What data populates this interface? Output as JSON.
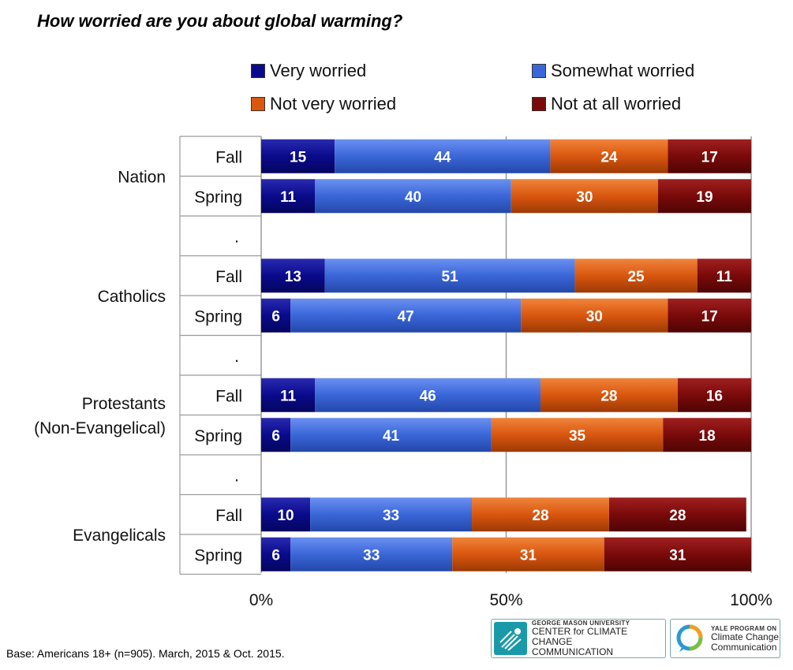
{
  "chart_data": {
    "type": "bar",
    "stacked": true,
    "orientation": "horizontal",
    "title": "How worried are you about global warming?",
    "groups": [
      {
        "label": "Nation",
        "rows": [
          {
            "label": "Fall",
            "values": [
              15,
              44,
              24,
              17
            ]
          },
          {
            "label": "Spring",
            "values": [
              11,
              40,
              30,
              19
            ]
          }
        ]
      },
      {
        "label": "Catholics",
        "rows": [
          {
            "label": "Fall",
            "values": [
              13,
              51,
              25,
              11
            ]
          },
          {
            "label": "Spring",
            "values": [
              6,
              47,
              30,
              17
            ]
          }
        ]
      },
      {
        "label": "Protestants\n(Non-Evangelical)",
        "rows": [
          {
            "label": "Fall",
            "values": [
              11,
              46,
              28,
              16
            ]
          },
          {
            "label": "Spring",
            "values": [
              6,
              41,
              35,
              18
            ]
          }
        ]
      },
      {
        "label": "Evangelicals",
        "rows": [
          {
            "label": "Fall",
            "values": [
              10,
              33,
              28,
              28
            ]
          },
          {
            "label": "Spring",
            "values": [
              6,
              33,
              31,
              31
            ]
          }
        ]
      }
    ],
    "separator_label": ".",
    "series": [
      {
        "name": "Very worried",
        "color": "#0a0a8c"
      },
      {
        "name": "Somewhat worried",
        "color": "#3a66d8"
      },
      {
        "name": "Not very worried",
        "color": "#d9560f"
      },
      {
        "name": "Not at all worried",
        "color": "#7a0a0a"
      }
    ],
    "x_ticks": [
      "0%",
      "50%",
      "100%"
    ],
    "xlim": [
      0,
      100
    ],
    "grid": true,
    "legend": "top"
  },
  "footnote": "Base: Americans 18+ (n=905). March, 2015 & Oct. 2015.",
  "logos": {
    "gmu_small": "GEORGE MASON UNIVERSITY",
    "gmu_line1": "CENTER for CLIMATE CHANGE",
    "gmu_line2": "COMMUNICATION",
    "yale_small": "YALE PROGRAM ON",
    "yale_line1": "Climate Change",
    "yale_line2": "Communication"
  }
}
